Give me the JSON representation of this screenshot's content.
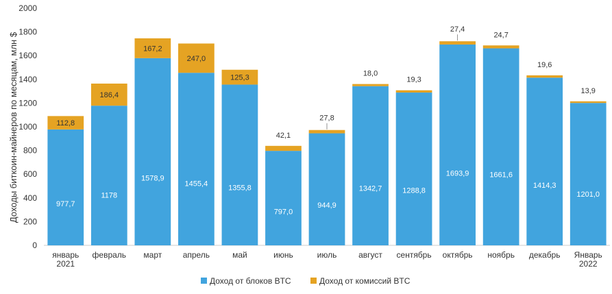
{
  "chart_data": {
    "type": "bar",
    "stacked": true,
    "ylabel": "Доходы биткоин-майнеров по месяцам, млн $",
    "ylim": [
      0,
      2000
    ],
    "yticks": [
      "0",
      "200",
      "400",
      "600",
      "800",
      "1000",
      "1200",
      "1400",
      "1600",
      "1800",
      "2000"
    ],
    "categories": [
      [
        "январь",
        "2021"
      ],
      [
        "февраль"
      ],
      [
        "март"
      ],
      [
        "апрель"
      ],
      [
        "май"
      ],
      [
        "июнь"
      ],
      [
        "июль"
      ],
      [
        "август"
      ],
      [
        "сентябрь"
      ],
      [
        "октябрь"
      ],
      [
        "ноябрь"
      ],
      [
        "декабрь"
      ],
      [
        "Январь",
        "2022"
      ]
    ],
    "series": [
      {
        "name": "Доход от блоков BTC",
        "color": "#41A4DE",
        "values": [
          977.7,
          1178,
          1578.9,
          1455.4,
          1355.8,
          797.0,
          944.9,
          1342.7,
          1288.8,
          1693.9,
          1661.6,
          1414.3,
          1201.0
        ],
        "labels": [
          "977,7",
          "1178",
          "1578,9",
          "1455,4",
          "1355,8",
          "797,0",
          "944,9",
          "1342,7",
          "1288,8",
          "1693,9",
          "1661,6",
          "1414,3",
          "1201,0"
        ]
      },
      {
        "name": "Доход от комиссий BTC",
        "color": "#E5A323",
        "values": [
          112.8,
          186.4,
          167.2,
          247.0,
          125.3,
          42.1,
          27.8,
          18.0,
          19.3,
          27.4,
          24.7,
          19.6,
          13.9
        ],
        "labels": [
          "112,8",
          "186,4",
          "167,2",
          "247,0",
          "125,3",
          "42,1",
          "27,8",
          "18,0",
          "19,3",
          "27,4",
          "24,7",
          "19,6",
          "13,9"
        ]
      }
    ],
    "legend_position": "bottom",
    "grid": false
  }
}
